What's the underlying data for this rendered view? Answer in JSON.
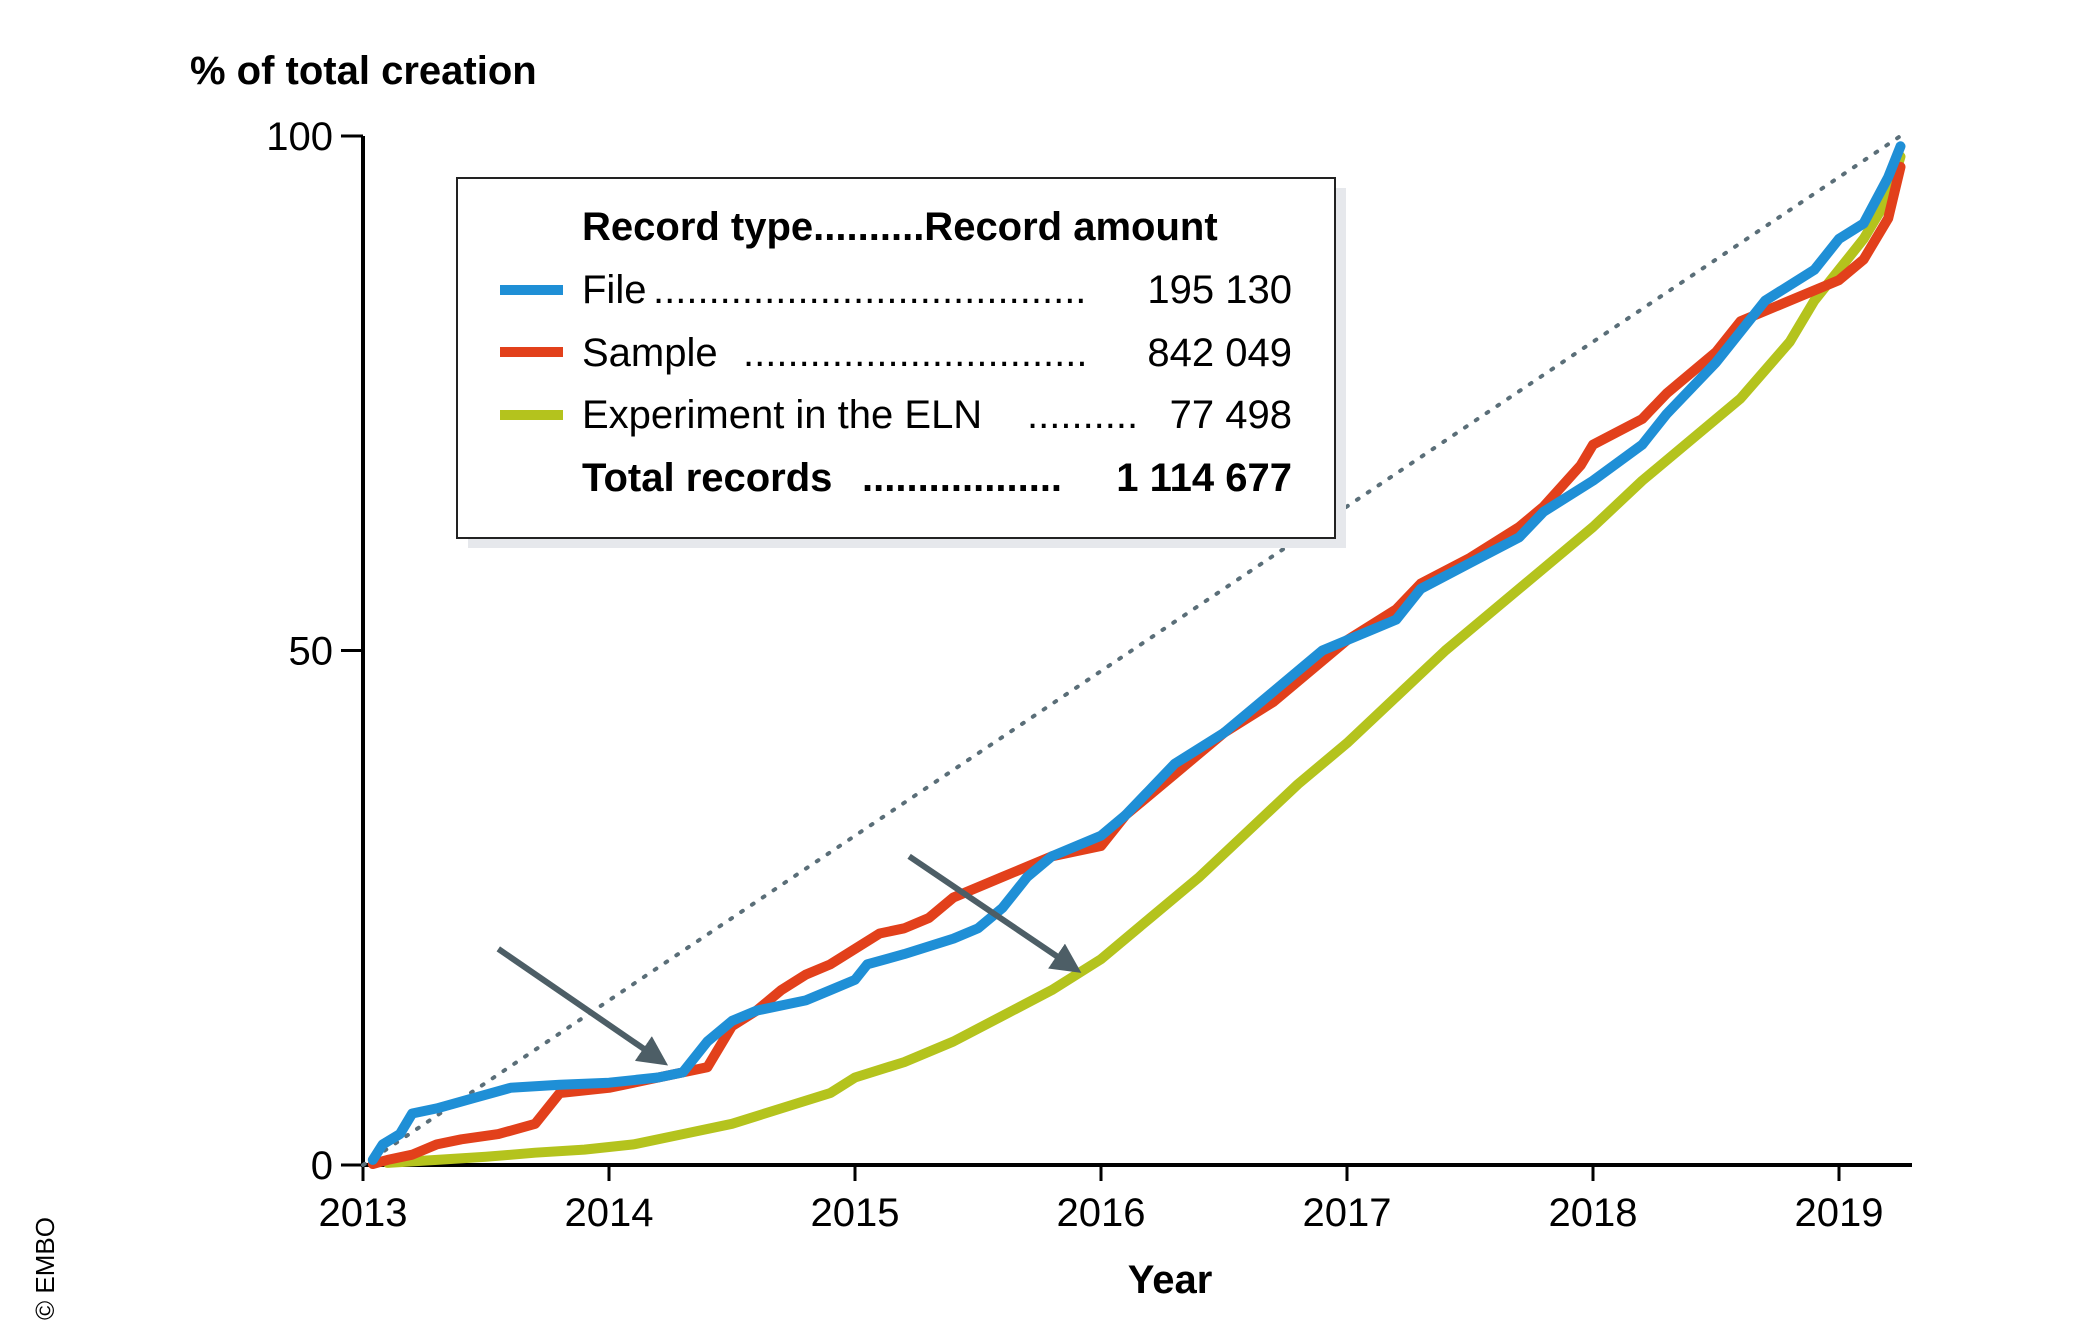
{
  "chart_data": {
    "type": "line",
    "ylabel": "% of total creation",
    "xlabel": "Year",
    "xlim": [
      2013,
      2019.35
    ],
    "ylim": [
      0,
      100
    ],
    "x_ticks": [
      "2013",
      "2014",
      "2015",
      "2016",
      "2017",
      "2018",
      "2019"
    ],
    "y_ticks": [
      "0",
      "50",
      "100"
    ],
    "grid": false,
    "legend_position": "top-left",
    "legend": {
      "header": "Record type..........Record amount",
      "total_label": "Total records",
      "total_dots": "..................",
      "total_value": "1 114 677",
      "entries": [
        {
          "series": "File",
          "dots": ".......................................",
          "value": "195 130"
        },
        {
          "series": "Sample",
          "dots": "...............................",
          "value": "842 049"
        },
        {
          "series": "Experiment in the ELN",
          "dots": "..........",
          "value": "77 498"
        }
      ]
    },
    "reference_line": {
      "x": [
        2013,
        2019.25
      ],
      "y": [
        0,
        100
      ],
      "style": "dotted"
    },
    "annotations": [
      {
        "type": "arrow",
        "from": [
          2013.55,
          21
        ],
        "to": [
          2014.22,
          10
        ]
      },
      {
        "type": "arrow",
        "from": [
          2015.22,
          30
        ],
        "to": [
          2015.9,
          19
        ]
      }
    ],
    "series": [
      {
        "name": "File",
        "color": "#1f8fd6",
        "x": [
          2013.04,
          2013.08,
          2013.15,
          2013.2,
          2013.3,
          2013.45,
          2013.6,
          2013.8,
          2014.0,
          2014.2,
          2014.3,
          2014.4,
          2014.5,
          2014.6,
          2014.8,
          2014.9,
          2015.0,
          2015.05,
          2015.2,
          2015.4,
          2015.5,
          2015.6,
          2015.7,
          2015.8,
          2016.0,
          2016.1,
          2016.3,
          2016.5,
          2016.7,
          2016.9,
          2017.0,
          2017.2,
          2017.3,
          2017.5,
          2017.7,
          2017.8,
          2018.0,
          2018.2,
          2018.3,
          2018.5,
          2018.7,
          2018.9,
          2019.0,
          2019.1,
          2019.2,
          2019.25
        ],
        "y": [
          0.5,
          2,
          3,
          5,
          5.5,
          6.5,
          7.5,
          7.8,
          8,
          8.5,
          9,
          12,
          14,
          15,
          16,
          17,
          18,
          19.5,
          20.5,
          22,
          23,
          25,
          28,
          30,
          32,
          34,
          39,
          42,
          46,
          50,
          51,
          53,
          56,
          58.5,
          61,
          63.5,
          66.5,
          70,
          73,
          78,
          84,
          87,
          90,
          91.5,
          96,
          99
        ]
      },
      {
        "name": "Sample",
        "color": "#e2401b",
        "x": [
          2013.04,
          2013.1,
          2013.2,
          2013.3,
          2013.4,
          2013.55,
          2013.7,
          2013.8,
          2014.0,
          2014.1,
          2014.2,
          2014.3,
          2014.4,
          2014.5,
          2014.6,
          2014.7,
          2014.8,
          2014.9,
          2015.0,
          2015.1,
          2015.2,
          2015.3,
          2015.4,
          2015.6,
          2015.8,
          2016.0,
          2016.1,
          2016.3,
          2016.5,
          2016.7,
          2016.9,
          2017.0,
          2017.2,
          2017.3,
          2017.5,
          2017.7,
          2017.8,
          2017.95,
          2018.0,
          2018.2,
          2018.3,
          2018.5,
          2018.6,
          2018.8,
          2019.0,
          2019.1,
          2019.2,
          2019.25
        ],
        "y": [
          0.1,
          0.5,
          1,
          2,
          2.5,
          3,
          4,
          7,
          7.5,
          8,
          8.5,
          9,
          9.5,
          13.5,
          15,
          17,
          18.5,
          19.5,
          21,
          22.5,
          23,
          24,
          26,
          28,
          30,
          31,
          34,
          38,
          42,
          45,
          49,
          51,
          54,
          56.5,
          59,
          62,
          64,
          68,
          70,
          72.5,
          75,
          79,
          82,
          84,
          86,
          88,
          92,
          97
        ]
      },
      {
        "name": "Experiment in the ELN",
        "color": "#b4c31d",
        "x": [
          2013.1,
          2013.3,
          2013.5,
          2013.7,
          2013.9,
          2014.1,
          2014.3,
          2014.5,
          2014.7,
          2014.9,
          2015.0,
          2015.2,
          2015.4,
          2015.6,
          2015.8,
          2016.0,
          2016.2,
          2016.4,
          2016.6,
          2016.8,
          2017.0,
          2017.2,
          2017.4,
          2017.6,
          2017.8,
          2018.0,
          2018.2,
          2018.4,
          2018.6,
          2018.8,
          2018.9,
          2019.0,
          2019.1,
          2019.2,
          2019.25
        ],
        "y": [
          0.2,
          0.5,
          0.8,
          1.2,
          1.5,
          2,
          3,
          4,
          5.5,
          7,
          8.5,
          10,
          12,
          14.5,
          17,
          20,
          24,
          28,
          32.5,
          37,
          41,
          45.5,
          50,
          54,
          58,
          62,
          66.5,
          70.5,
          74.5,
          80,
          84,
          87,
          90,
          94,
          98
        ]
      }
    ]
  },
  "footer": {
    "copyright": "© EMBO"
  }
}
